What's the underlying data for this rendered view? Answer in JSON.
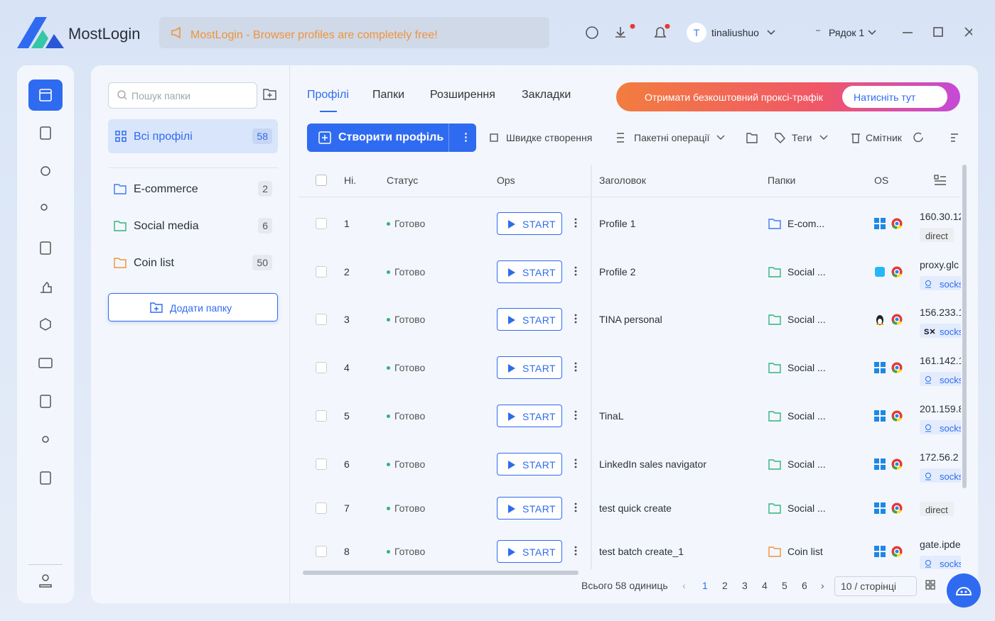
{
  "header": {
    "app_name": "MostLogin",
    "banner": "MostLogin - Browser profiles are completely free!",
    "user_initial": "T",
    "user": "tinaliushuo",
    "row_label": "Рядок 1"
  },
  "folders": {
    "search_placeholder": "Пошук папки",
    "all": {
      "label": "Всі профілі",
      "count": 58
    },
    "items": [
      {
        "name": "E-commerce",
        "count": 2,
        "color": "#3b7bf0"
      },
      {
        "name": "Social media",
        "count": 6,
        "color": "#2fb37c"
      },
      {
        "name": "Coin list",
        "count": 50,
        "color": "#f0933b"
      }
    ],
    "add": "Додати папку"
  },
  "tabs": [
    "Профілі",
    "Папки",
    "Розширення",
    "Закладки"
  ],
  "promo": {
    "text": "Отримати безкоштовний проксі-трафік",
    "button": "Натисніть тут"
  },
  "toolbar": {
    "create": "Створити профіль",
    "quick": "Швидке створення",
    "batch": "Пакетні операції",
    "tags": "Теги",
    "trash": "Смітник"
  },
  "table": {
    "columns": [
      "Ні.",
      "Статус",
      "Ops",
      "Заголовок",
      "Папки",
      "OS"
    ],
    "rows": [
      {
        "no": 1,
        "status": "Готово",
        "action": "START",
        "title": "Profile 1",
        "folder": "E-com...",
        "folder_color": "#3b7bf0",
        "os": "windows",
        "proxy": "160.30.12",
        "proxy_tag": "direct"
      },
      {
        "no": 2,
        "status": "Готово",
        "action": "START",
        "title": "Profile 2",
        "folder": "Social ...",
        "folder_color": "#2fb37c",
        "os": "mac",
        "proxy": "proxy.glc",
        "proxy_tag": "socks"
      },
      {
        "no": 3,
        "status": "Готово",
        "action": "START",
        "title": "TINA personal",
        "folder": "Social ...",
        "folder_color": "#2fb37c",
        "os": "linux",
        "proxy": "156.233.1",
        "proxy_tag": "socks"
      },
      {
        "no": 4,
        "status": "Готово",
        "action": "START",
        "folder": "Social ...",
        "folder_color": "#2fb37c",
        "os": "windows",
        "proxy": "161.142.1",
        "proxy_tag": "socks"
      },
      {
        "no": 5,
        "status": "Готово",
        "action": "START",
        "title": "TinaL",
        "folder": "Social ...",
        "folder_color": "#2fb37c",
        "os": "windows",
        "proxy": "201.159.8",
        "proxy_tag": "socks"
      },
      {
        "no": 6,
        "status": "Готово",
        "action": "START",
        "title": "LinkedIn sales navigator",
        "folder": "Social ...",
        "folder_color": "#2fb37c",
        "os": "windows",
        "proxy": "172.56.2",
        "proxy_tag": "socks"
      },
      {
        "no": 7,
        "status": "Готово",
        "action": "START",
        "title": "test quick create",
        "folder": "Social ...",
        "folder_color": "#2fb37c",
        "os": "windows",
        "proxy_tag": "direct"
      },
      {
        "no": 8,
        "status": "Готово",
        "action": "START",
        "title": "test batch create_1",
        "folder": "Coin list",
        "folder_color": "#f0933b",
        "os": "windows",
        "proxy": "gate.ipde",
        "proxy_tag": "socks"
      }
    ]
  },
  "pagination": {
    "total": "Всього 58 одиниць",
    "pages": [
      1,
      2,
      3,
      4,
      5,
      6
    ],
    "current": 1,
    "page_size": "10 / сторінці"
  }
}
